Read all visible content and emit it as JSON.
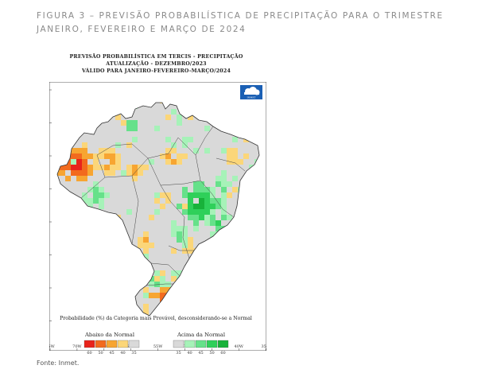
{
  "caption": "FIGURA 3 – PREVISÃO PROBABILÍSTICA DE PRECIPITAÇÃO PARA O TRIMESTRE JANEIRO, FEVEREIRO E MARÇO DE 2024",
  "map": {
    "title_lines": [
      "PREVISÃO PROBABILÍSTICA EM TERCIS - PRECIPITAÇÃO",
      "ATUALIZAÇÃO - DEZEMBRO/2023",
      "VÁLIDO PARA JANEIRO-FEVEREIRO-MARÇO/2024"
    ],
    "lat_labels": [
      "5N",
      "EQ",
      "5S",
      "10S",
      "15S",
      "20S",
      "25S",
      "30S",
      "35S"
    ],
    "lon_labels": [
      "75W",
      "70W",
      "65W",
      "60W",
      "55W",
      "50W",
      "45W",
      "40W",
      "35W"
    ],
    "note": "Probabilidade (%) da Categoria mais Provável, desconsiderando-se a Normal",
    "legend": {
      "below_label": "Abaixo da Normal",
      "above_label": "Acima da Normal",
      "below": [
        {
          "value": "60",
          "color": "#e8231b"
        },
        {
          "value": "50",
          "color": "#f26a1e"
        },
        {
          "value": "45",
          "color": "#f7a531"
        },
        {
          "value": "40",
          "color": "#fbd679"
        },
        {
          "value": "35",
          "color": "#d9d9d9"
        }
      ],
      "above": [
        {
          "value": "35",
          "color": "#d9d9d9"
        },
        {
          "value": "40",
          "color": "#a6f2b8"
        },
        {
          "value": "45",
          "color": "#66e18a"
        },
        {
          "value": "50",
          "color": "#2fd05a"
        },
        {
          "value": "60",
          "color": "#18b23a"
        }
      ]
    },
    "logo_text": "INMET"
  },
  "source": "Fonte: Inmet."
}
